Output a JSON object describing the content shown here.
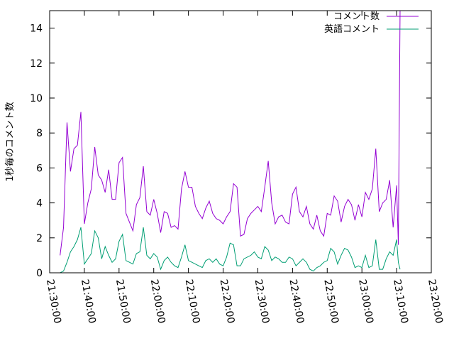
{
  "chart_data": {
    "type": "line",
    "title": "",
    "xlabel": "",
    "ylabel": "1秒毎のコメント数",
    "xlim": [
      "21:30:00",
      "23:20:00"
    ],
    "ylim": [
      0,
      15
    ],
    "y_ticks": [
      0,
      2,
      4,
      6,
      8,
      10,
      12,
      14
    ],
    "x_ticks": [
      "21:30:00",
      "21:40:00",
      "21:50:00",
      "22:00:00",
      "22:10:00",
      "22:20:00",
      "22:30:00",
      "22:40:00",
      "22:50:00",
      "23:00:00",
      "23:10:00",
      "23:20:00"
    ],
    "grid": false,
    "legend_position": "top-right",
    "series": [
      {
        "name": "コメント数",
        "color": "#9400d3",
        "points": [
          [
            "21:33:00",
            1.0
          ],
          [
            "21:34:00",
            2.6
          ],
          [
            "21:35:00",
            8.6
          ],
          [
            "21:36:00",
            5.8
          ],
          [
            "21:37:00",
            7.1
          ],
          [
            "21:38:00",
            7.3
          ],
          [
            "21:39:00",
            9.2
          ],
          [
            "21:40:00",
            2.8
          ],
          [
            "21:41:00",
            4.0
          ],
          [
            "21:42:00",
            4.8
          ],
          [
            "21:43:00",
            7.2
          ],
          [
            "21:44:00",
            5.6
          ],
          [
            "21:45:00",
            5.3
          ],
          [
            "21:46:00",
            4.6
          ],
          [
            "21:47:00",
            5.9
          ],
          [
            "21:48:00",
            4.2
          ],
          [
            "21:49:00",
            4.2
          ],
          [
            "21:50:00",
            6.3
          ],
          [
            "21:51:00",
            6.6
          ],
          [
            "21:52:00",
            3.4
          ],
          [
            "21:53:00",
            2.9
          ],
          [
            "21:54:00",
            2.4
          ],
          [
            "21:55:00",
            3.9
          ],
          [
            "21:56:00",
            4.3
          ],
          [
            "21:57:00",
            6.1
          ],
          [
            "21:58:00",
            3.5
          ],
          [
            "21:59:00",
            3.3
          ],
          [
            "22:00:00",
            4.2
          ],
          [
            "22:01:00",
            3.4
          ],
          [
            "22:02:00",
            2.3
          ],
          [
            "22:03:00",
            3.5
          ],
          [
            "22:04:00",
            3.4
          ],
          [
            "22:05:00",
            2.6
          ],
          [
            "22:06:00",
            2.7
          ],
          [
            "22:07:00",
            2.5
          ],
          [
            "22:08:00",
            4.8
          ],
          [
            "22:09:00",
            5.8
          ],
          [
            "22:10:00",
            4.9
          ],
          [
            "22:11:00",
            4.9
          ],
          [
            "22:12:00",
            3.8
          ],
          [
            "22:13:00",
            3.4
          ],
          [
            "22:14:00",
            3.1
          ],
          [
            "22:15:00",
            3.7
          ],
          [
            "22:16:00",
            4.1
          ],
          [
            "22:17:00",
            3.4
          ],
          [
            "22:18:00",
            3.1
          ],
          [
            "22:19:00",
            3.0
          ],
          [
            "22:20:00",
            2.8
          ],
          [
            "22:21:00",
            3.2
          ],
          [
            "22:22:00",
            3.5
          ],
          [
            "22:23:00",
            5.1
          ],
          [
            "22:24:00",
            4.9
          ],
          [
            "22:25:00",
            2.1
          ],
          [
            "22:26:00",
            2.2
          ],
          [
            "22:27:00",
            3.1
          ],
          [
            "22:28:00",
            3.4
          ],
          [
            "22:29:00",
            3.6
          ],
          [
            "22:30:00",
            3.8
          ],
          [
            "22:31:00",
            3.5
          ],
          [
            "22:32:00",
            4.9
          ],
          [
            "22:33:00",
            6.4
          ],
          [
            "22:34:00",
            4.0
          ],
          [
            "22:35:00",
            2.8
          ],
          [
            "22:36:00",
            3.2
          ],
          [
            "22:37:00",
            3.3
          ],
          [
            "22:38:00",
            2.9
          ],
          [
            "22:39:00",
            2.8
          ],
          [
            "22:40:00",
            4.5
          ],
          [
            "22:41:00",
            4.9
          ],
          [
            "22:42:00",
            3.5
          ],
          [
            "22:43:00",
            3.2
          ],
          [
            "22:44:00",
            3.8
          ],
          [
            "22:45:00",
            2.8
          ],
          [
            "22:46:00",
            2.5
          ],
          [
            "22:47:00",
            3.3
          ],
          [
            "22:48:00",
            2.4
          ],
          [
            "22:49:00",
            2.1
          ],
          [
            "22:50:00",
            3.4
          ],
          [
            "22:51:00",
            3.3
          ],
          [
            "22:52:00",
            4.4
          ],
          [
            "22:53:00",
            4.1
          ],
          [
            "22:54:00",
            2.9
          ],
          [
            "22:55:00",
            3.8
          ],
          [
            "22:56:00",
            4.2
          ],
          [
            "22:57:00",
            3.9
          ],
          [
            "22:58:00",
            3.0
          ],
          [
            "22:59:00",
            3.9
          ],
          [
            "23:00:00",
            3.2
          ],
          [
            "23:01:00",
            4.6
          ],
          [
            "23:02:00",
            4.2
          ],
          [
            "23:03:00",
            4.8
          ],
          [
            "23:04:00",
            7.1
          ],
          [
            "23:05:00",
            3.5
          ],
          [
            "23:06:00",
            4.0
          ],
          [
            "23:07:00",
            4.2
          ],
          [
            "23:08:00",
            5.3
          ],
          [
            "23:09:00",
            2.6
          ],
          [
            "23:10:00",
            5.0
          ],
          [
            "23:10:30",
            1.6
          ],
          [
            "23:11:00",
            15.0
          ]
        ]
      },
      {
        "name": "英語コメント",
        "color": "#009e73",
        "points": [
          [
            "21:33:00",
            0.0
          ],
          [
            "21:34:00",
            0.1
          ],
          [
            "21:35:00",
            0.6
          ],
          [
            "21:36:00",
            1.2
          ],
          [
            "21:37:00",
            1.5
          ],
          [
            "21:38:00",
            1.9
          ],
          [
            "21:39:00",
            2.6
          ],
          [
            "21:40:00",
            0.5
          ],
          [
            "21:41:00",
            0.8
          ],
          [
            "21:42:00",
            1.1
          ],
          [
            "21:43:00",
            2.4
          ],
          [
            "21:44:00",
            2.0
          ],
          [
            "21:45:00",
            0.8
          ],
          [
            "21:46:00",
            1.5
          ],
          [
            "21:47:00",
            1.0
          ],
          [
            "21:48:00",
            0.6
          ],
          [
            "21:49:00",
            0.8
          ],
          [
            "21:50:00",
            1.8
          ],
          [
            "21:51:00",
            2.2
          ],
          [
            "21:52:00",
            0.7
          ],
          [
            "21:53:00",
            0.6
          ],
          [
            "21:54:00",
            0.5
          ],
          [
            "21:55:00",
            1.1
          ],
          [
            "21:56:00",
            1.2
          ],
          [
            "21:57:00",
            2.6
          ],
          [
            "21:58:00",
            1.0
          ],
          [
            "21:59:00",
            0.8
          ],
          [
            "22:00:00",
            1.1
          ],
          [
            "22:01:00",
            0.9
          ],
          [
            "22:02:00",
            0.2
          ],
          [
            "22:03:00",
            0.7
          ],
          [
            "22:04:00",
            0.9
          ],
          [
            "22:05:00",
            0.6
          ],
          [
            "22:06:00",
            0.4
          ],
          [
            "22:07:00",
            0.3
          ],
          [
            "22:08:00",
            0.9
          ],
          [
            "22:09:00",
            1.6
          ],
          [
            "22:10:00",
            0.7
          ],
          [
            "22:11:00",
            0.6
          ],
          [
            "22:12:00",
            0.5
          ],
          [
            "22:13:00",
            0.4
          ],
          [
            "22:14:00",
            0.3
          ],
          [
            "22:15:00",
            0.7
          ],
          [
            "22:16:00",
            0.8
          ],
          [
            "22:17:00",
            0.6
          ],
          [
            "22:18:00",
            0.8
          ],
          [
            "22:19:00",
            0.5
          ],
          [
            "22:20:00",
            0.4
          ],
          [
            "22:21:00",
            0.9
          ],
          [
            "22:22:00",
            1.7
          ],
          [
            "22:23:00",
            1.6
          ],
          [
            "22:24:00",
            0.4
          ],
          [
            "22:25:00",
            0.4
          ],
          [
            "22:26:00",
            0.8
          ],
          [
            "22:27:00",
            0.9
          ],
          [
            "22:28:00",
            1.0
          ],
          [
            "22:29:00",
            1.2
          ],
          [
            "22:30:00",
            0.9
          ],
          [
            "22:31:00",
            0.8
          ],
          [
            "22:32:00",
            1.5
          ],
          [
            "22:33:00",
            1.3
          ],
          [
            "22:34:00",
            0.7
          ],
          [
            "22:35:00",
            0.9
          ],
          [
            "22:36:00",
            0.8
          ],
          [
            "22:37:00",
            0.6
          ],
          [
            "22:38:00",
            0.6
          ],
          [
            "22:39:00",
            0.9
          ],
          [
            "22:40:00",
            0.8
          ],
          [
            "22:41:00",
            0.4
          ],
          [
            "22:42:00",
            0.6
          ],
          [
            "22:43:00",
            0.8
          ],
          [
            "22:44:00",
            0.6
          ],
          [
            "22:45:00",
            0.2
          ],
          [
            "22:46:00",
            0.1
          ],
          [
            "22:47:00",
            0.3
          ],
          [
            "22:48:00",
            0.4
          ],
          [
            "22:49:00",
            0.6
          ],
          [
            "22:50:00",
            0.7
          ],
          [
            "22:51:00",
            1.4
          ],
          [
            "22:52:00",
            1.2
          ],
          [
            "22:53:00",
            0.5
          ],
          [
            "22:54:00",
            1.0
          ],
          [
            "22:55:00",
            1.4
          ],
          [
            "22:56:00",
            1.3
          ],
          [
            "22:57:00",
            0.9
          ],
          [
            "22:58:00",
            0.3
          ],
          [
            "22:59:00",
            0.4
          ],
          [
            "23:00:00",
            0.3
          ],
          [
            "23:01:00",
            1.0
          ],
          [
            "23:02:00",
            0.3
          ],
          [
            "23:03:00",
            0.4
          ],
          [
            "23:04:00",
            1.9
          ],
          [
            "23:05:00",
            0.2
          ],
          [
            "23:06:00",
            0.2
          ],
          [
            "23:07:00",
            0.8
          ],
          [
            "23:08:00",
            1.2
          ],
          [
            "23:09:00",
            1.0
          ],
          [
            "23:10:00",
            1.9
          ],
          [
            "23:10:30",
            0.6
          ],
          [
            "23:11:00",
            0.2
          ]
        ]
      }
    ]
  }
}
